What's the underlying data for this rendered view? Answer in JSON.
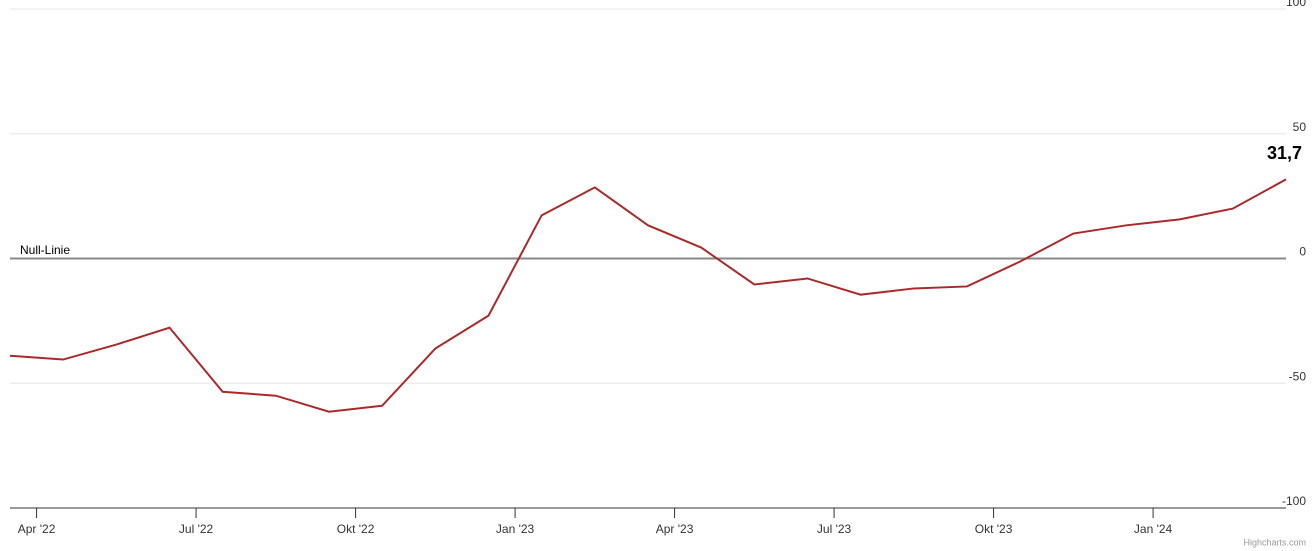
{
  "chart_data": {
    "type": "line",
    "x": [
      "2022-03",
      "2022-04",
      "2022-05",
      "2022-06",
      "2022-07",
      "2022-08",
      "2022-09",
      "2022-10",
      "2022-11",
      "2022-12",
      "2023-01",
      "2023-02",
      "2023-03",
      "2023-04",
      "2023-05",
      "2023-06",
      "2023-07",
      "2023-08",
      "2023-09",
      "2023-10",
      "2023-11",
      "2023-12",
      "2024-01",
      "2024-02",
      "2024-03"
    ],
    "series": [
      {
        "color": "#aa2a2a",
        "values": [
          -39,
          -40.5,
          -34.5,
          -27.7,
          -53.4,
          -55,
          -61.4,
          -59,
          -36.1,
          -22.9,
          17.3,
          28.5,
          13.3,
          4.4,
          -10.4,
          -8,
          -14.5,
          -12,
          -11.2,
          -1.2,
          10,
          13.3,
          15.7,
          20,
          31.7
        ],
        "value_labels": [
          null,
          null,
          null,
          null,
          null,
          null,
          null,
          null,
          null,
          null,
          null,
          null,
          null,
          null,
          null,
          null,
          null,
          null,
          null,
          null,
          null,
          null,
          null,
          null,
          "31,7"
        ]
      }
    ],
    "xlim": [
      "2022-03",
      "2024-03"
    ],
    "xticks": [
      {
        "value": "2022-04",
        "label": "Apr '22"
      },
      {
        "value": "2022-07",
        "label": "Jul '22"
      },
      {
        "value": "2022-10",
        "label": "Okt '22"
      },
      {
        "value": "2023-01",
        "label": "Jan '23"
      },
      {
        "value": "2023-04",
        "label": "Apr '23"
      },
      {
        "value": "2023-07",
        "label": "Jul '23"
      },
      {
        "value": "2023-10",
        "label": "Okt '23"
      },
      {
        "value": "2024-01",
        "label": "Jan '24"
      }
    ],
    "ylim": [
      -100,
      100
    ],
    "yticks": [
      -100,
      -50,
      0,
      50,
      100
    ],
    "grid": true,
    "zero_line_label": "Null-Linie",
    "credits": "Highcharts.com"
  }
}
